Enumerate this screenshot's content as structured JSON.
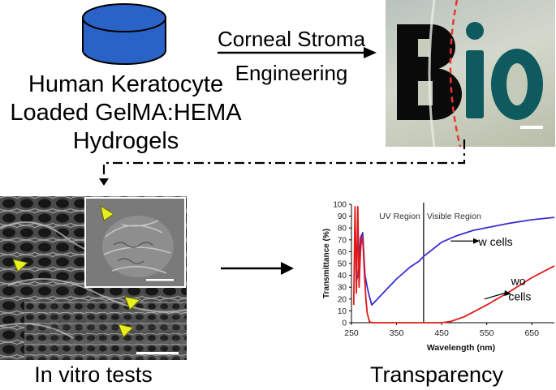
{
  "header": {
    "source_label_lines": [
      "Human Keratocyte",
      "Loaded GelMA:HEMA",
      "Hydrogels"
    ],
    "process_label_lines": [
      "Corneal Stroma",
      "Engineering"
    ],
    "photo_text": "Bio"
  },
  "bottom_labels": {
    "left": "In vitro tests",
    "right": "Transparency"
  },
  "colors": {
    "cylinder_fill": "#2a63c7",
    "series_w_cells": "#3a2fd0",
    "series_wo_cells": "#e01818",
    "cut_line": "#e8362c",
    "arrowhead_marker": "#e8f020"
  },
  "chart_data": {
    "type": "line",
    "xlabel": "Wavelength (nm)",
    "ylabel": "Transmittance (%)",
    "xlim": [
      250,
      700
    ],
    "ylim": [
      0,
      100
    ],
    "xticks": [
      250,
      350,
      450,
      550,
      650
    ],
    "yticks": [
      0,
      10,
      20,
      30,
      40,
      50,
      60,
      70,
      80,
      90,
      100
    ],
    "region_divider_x": 410,
    "region_labels": [
      "UV Region",
      "Visible Region"
    ],
    "grid": false,
    "series": [
      {
        "name": "w cells",
        "color": "#3a2fd0",
        "x": [
          260,
          265,
          270,
          275,
          280,
          285,
          290,
          295,
          300,
          320,
          350,
          380,
          400,
          410,
          430,
          450,
          480,
          520,
          560,
          600,
          650,
          700
        ],
        "y": [
          35,
          40,
          72,
          76,
          40,
          30,
          22,
          15,
          17,
          25,
          37,
          47,
          52,
          56,
          62,
          68,
          73,
          78,
          81,
          84,
          87,
          89
        ]
      },
      {
        "name": "wo cells",
        "color": "#e01818",
        "x": [
          255,
          258,
          261,
          264,
          267,
          270,
          273,
          276,
          279,
          282,
          285,
          290,
          295,
          300,
          350,
          400,
          450,
          470,
          500,
          550,
          600,
          650,
          700
        ],
        "y": [
          15,
          98,
          25,
          98,
          30,
          60,
          73,
          65,
          40,
          20,
          8,
          1,
          0,
          0,
          0,
          0,
          0,
          1,
          5,
          15,
          26,
          38,
          48
        ]
      }
    ],
    "annotations": [
      "w cells",
      "wo",
      "cells"
    ]
  }
}
